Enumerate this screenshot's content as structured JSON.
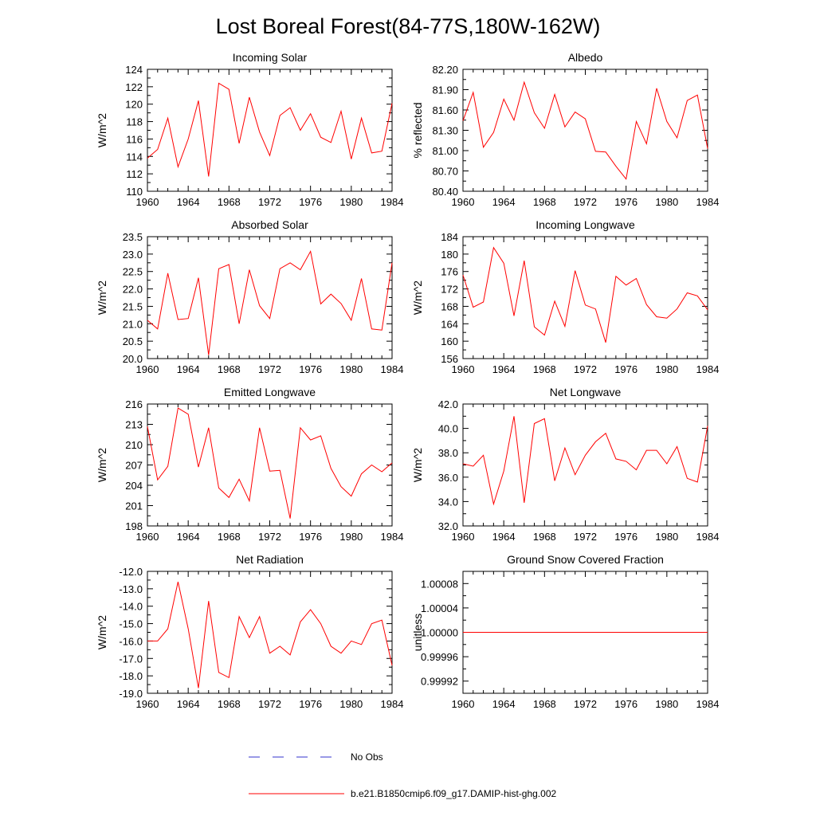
{
  "title": "Lost Boreal Forest(84-77S,180W-162W)",
  "colors": {
    "model": "#ff0000",
    "obs": "#3333cc",
    "axis": "#000000"
  },
  "legend": {
    "obs_label": "No Obs",
    "model_label": "b.e21.B1850cmip6.f09_g17.DAMIP-hist-ghg.002"
  },
  "chart_data": [
    {
      "type": "line",
      "title": "Incoming Solar",
      "xlabel": "",
      "ylabel": "W/m^2",
      "xlim": [
        1960,
        1984
      ],
      "ylim": [
        110,
        124
      ],
      "xticks": [
        1960,
        1964,
        1968,
        1972,
        1976,
        1980,
        1984
      ],
      "yticks": [
        110,
        112,
        114,
        116,
        118,
        120,
        122,
        124
      ],
      "ytick_labels": [
        "110",
        "112",
        "114",
        "116",
        "118",
        "120",
        "122",
        "124"
      ],
      "x": [
        1960,
        1961,
        1962,
        1963,
        1964,
        1965,
        1966,
        1967,
        1968,
        1969,
        1970,
        1971,
        1972,
        1973,
        1974,
        1975,
        1976,
        1977,
        1978,
        1979,
        1980,
        1981,
        1982,
        1983,
        1984
      ],
      "series": [
        {
          "values": [
            113.8,
            114.8,
            118.4,
            112.8,
            116.0,
            120.4,
            111.7,
            122.4,
            121.7,
            115.5,
            120.8,
            116.8,
            114.1,
            118.7,
            119.6,
            117.0,
            118.9,
            116.2,
            115.6,
            119.2,
            113.7,
            118.4,
            114.4,
            114.6,
            120.1
          ]
        }
      ]
    },
    {
      "type": "line",
      "title": "Albedo",
      "xlabel": "",
      "ylabel": "% reflected",
      "xlim": [
        1960,
        1984
      ],
      "ylim": [
        80.4,
        82.2
      ],
      "xticks": [
        1960,
        1964,
        1968,
        1972,
        1976,
        1980,
        1984
      ],
      "yticks": [
        80.4,
        80.7,
        81.0,
        81.3,
        81.6,
        81.9,
        82.2
      ],
      "ytick_labels": [
        "80.40",
        "80.70",
        "81.00",
        "81.30",
        "81.60",
        "81.90",
        "82.20"
      ],
      "x": [
        1960,
        1961,
        1962,
        1963,
        1964,
        1965,
        1966,
        1967,
        1968,
        1969,
        1970,
        1971,
        1972,
        1973,
        1974,
        1975,
        1976,
        1977,
        1978,
        1979,
        1980,
        1981,
        1982,
        1983,
        1984
      ],
      "series": [
        {
          "values": [
            81.44,
            81.86,
            81.05,
            81.27,
            81.76,
            81.45,
            82.01,
            81.56,
            81.33,
            81.83,
            81.35,
            81.57,
            81.47,
            80.99,
            80.98,
            80.77,
            80.58,
            81.43,
            81.1,
            81.92,
            81.43,
            81.19,
            81.74,
            81.82,
            81.03
          ]
        }
      ]
    },
    {
      "type": "line",
      "title": "Absorbed Solar",
      "xlabel": "",
      "ylabel": "W/m^2",
      "xlim": [
        1960,
        1984
      ],
      "ylim": [
        20.0,
        23.5
      ],
      "xticks": [
        1960,
        1964,
        1968,
        1972,
        1976,
        1980,
        1984
      ],
      "yticks": [
        20.0,
        20.5,
        21.0,
        21.5,
        22.0,
        22.5,
        23.0,
        23.5
      ],
      "ytick_labels": [
        "20.0",
        "20.5",
        "21.0",
        "21.5",
        "22.0",
        "22.5",
        "23.0",
        "23.5"
      ],
      "x": [
        1960,
        1961,
        1962,
        1963,
        1964,
        1965,
        1966,
        1967,
        1968,
        1969,
        1970,
        1971,
        1972,
        1973,
        1974,
        1975,
        1976,
        1977,
        1978,
        1979,
        1980,
        1981,
        1982,
        1983,
        1984
      ],
      "series": [
        {
          "values": [
            21.1,
            20.85,
            22.45,
            21.12,
            21.15,
            22.32,
            20.1,
            22.58,
            22.7,
            21.0,
            22.55,
            21.52,
            21.15,
            22.58,
            22.75,
            22.55,
            23.08,
            21.57,
            21.85,
            21.58,
            21.1,
            22.3,
            20.85,
            20.82,
            22.75
          ]
        }
      ]
    },
    {
      "type": "line",
      "title": "Incoming Longwave",
      "xlabel": "",
      "ylabel": "W/m^2",
      "xlim": [
        1960,
        1984
      ],
      "ylim": [
        156,
        184
      ],
      "xticks": [
        1960,
        1964,
        1968,
        1972,
        1976,
        1980,
        1984
      ],
      "yticks": [
        156,
        160,
        164,
        168,
        172,
        176,
        180,
        184
      ],
      "ytick_labels": [
        "156",
        "160",
        "164",
        "168",
        "172",
        "176",
        "180",
        "184"
      ],
      "x": [
        1960,
        1961,
        1962,
        1963,
        1964,
        1965,
        1966,
        1967,
        1968,
        1969,
        1970,
        1971,
        1972,
        1973,
        1974,
        1975,
        1976,
        1977,
        1978,
        1979,
        1980,
        1981,
        1982,
        1983,
        1984
      ],
      "series": [
        {
          "values": [
            175.2,
            167.8,
            169.0,
            181.5,
            177.9,
            165.8,
            178.5,
            163.3,
            161.4,
            169.2,
            163.4,
            176.2,
            168.3,
            167.4,
            159.7,
            174.9,
            172.9,
            174.4,
            168.4,
            165.6,
            165.3,
            167.4,
            171.1,
            170.4,
            167.2
          ]
        }
      ]
    },
    {
      "type": "line",
      "title": "Emitted Longwave",
      "xlabel": "",
      "ylabel": "W/m^2",
      "xlim": [
        1960,
        1984
      ],
      "ylim": [
        198,
        216
      ],
      "xticks": [
        1960,
        1964,
        1968,
        1972,
        1976,
        1980,
        1984
      ],
      "yticks": [
        198,
        201,
        204,
        207,
        210,
        213,
        216
      ],
      "ytick_labels": [
        "198",
        "201",
        "204",
        "207",
        "210",
        "213",
        "216"
      ],
      "x": [
        1960,
        1961,
        1962,
        1963,
        1964,
        1965,
        1966,
        1967,
        1968,
        1969,
        1970,
        1971,
        1972,
        1973,
        1974,
        1975,
        1976,
        1977,
        1978,
        1979,
        1980,
        1981,
        1982,
        1983,
        1984
      ],
      "series": [
        {
          "values": [
            212.7,
            204.8,
            206.8,
            215.4,
            214.5,
            206.7,
            212.5,
            203.6,
            202.2,
            204.9,
            201.7,
            212.5,
            206.1,
            206.2,
            199.1,
            212.5,
            210.7,
            211.3,
            206.5,
            203.8,
            202.4,
            205.7,
            207.0,
            206.0,
            207.3
          ]
        }
      ]
    },
    {
      "type": "line",
      "title": "Net Longwave",
      "xlabel": "",
      "ylabel": "W/m^2",
      "xlim": [
        1960,
        1984
      ],
      "ylim": [
        32.0,
        42.0
      ],
      "xticks": [
        1960,
        1964,
        1968,
        1972,
        1976,
        1980,
        1984
      ],
      "yticks": [
        32.0,
        34.0,
        36.0,
        38.0,
        40.0,
        42.0
      ],
      "ytick_labels": [
        "32.0",
        "34.0",
        "36.0",
        "38.0",
        "40.0",
        "42.0"
      ],
      "x": [
        1960,
        1961,
        1962,
        1963,
        1964,
        1965,
        1966,
        1967,
        1968,
        1969,
        1970,
        1971,
        1972,
        1973,
        1974,
        1975,
        1976,
        1977,
        1978,
        1979,
        1980,
        1981,
        1982,
        1983,
        1984
      ],
      "series": [
        {
          "values": [
            37.1,
            36.9,
            37.8,
            33.8,
            36.5,
            41.0,
            33.9,
            40.4,
            40.8,
            35.7,
            38.4,
            36.2,
            37.8,
            38.9,
            39.6,
            37.5,
            37.3,
            36.6,
            38.2,
            38.2,
            37.1,
            38.5,
            35.9,
            35.6,
            40.2
          ]
        }
      ]
    },
    {
      "type": "line",
      "title": "Net Radiation",
      "xlabel": "",
      "ylabel": "W/m^2",
      "xlim": [
        1960,
        1984
      ],
      "ylim": [
        -19.0,
        -12.0
      ],
      "xticks": [
        1960,
        1964,
        1968,
        1972,
        1976,
        1980,
        1984
      ],
      "yticks": [
        -19.0,
        -18.0,
        -17.0,
        -16.0,
        -15.0,
        -14.0,
        -13.0,
        -12.0
      ],
      "ytick_labels": [
        "-19.0",
        "-18.0",
        "-17.0",
        "-16.0",
        "-15.0",
        "-14.0",
        "-13.0",
        "-12.0"
      ],
      "x": [
        1960,
        1961,
        1962,
        1963,
        1964,
        1965,
        1966,
        1967,
        1968,
        1969,
        1970,
        1971,
        1972,
        1973,
        1974,
        1975,
        1976,
        1977,
        1978,
        1979,
        1980,
        1981,
        1982,
        1983,
        1984
      ],
      "series": [
        {
          "values": [
            -16.0,
            -16.0,
            -15.3,
            -12.6,
            -15.3,
            -18.7,
            -13.7,
            -17.8,
            -18.1,
            -14.6,
            -15.8,
            -14.6,
            -16.7,
            -16.3,
            -16.8,
            -14.9,
            -14.2,
            -15.0,
            -16.3,
            -16.7,
            -16.0,
            -16.2,
            -15.0,
            -14.8,
            -17.4
          ]
        }
      ]
    },
    {
      "type": "line",
      "title": "Ground Snow Covered Fraction",
      "xlabel": "",
      "ylabel": "unitless",
      "xlim": [
        1960,
        1984
      ],
      "ylim": [
        0.9999,
        1.0001
      ],
      "xticks": [
        1960,
        1964,
        1968,
        1972,
        1976,
        1980,
        1984
      ],
      "yticks": [
        0.99992,
        0.99996,
        1.0,
        1.00004,
        1.00008
      ],
      "ytick_labels": [
        "0.99992",
        "0.99996",
        "1.00000",
        "1.00004",
        "1.00008"
      ],
      "x": [
        1960,
        1961,
        1962,
        1963,
        1964,
        1965,
        1966,
        1967,
        1968,
        1969,
        1970,
        1971,
        1972,
        1973,
        1974,
        1975,
        1976,
        1977,
        1978,
        1979,
        1980,
        1981,
        1982,
        1983,
        1984
      ],
      "series": [
        {
          "values": [
            1,
            1,
            1,
            1,
            1,
            1,
            1,
            1,
            1,
            1,
            1,
            1,
            1,
            1,
            1,
            1,
            1,
            1,
            1,
            1,
            1,
            1,
            1,
            1,
            1
          ]
        }
      ]
    }
  ]
}
